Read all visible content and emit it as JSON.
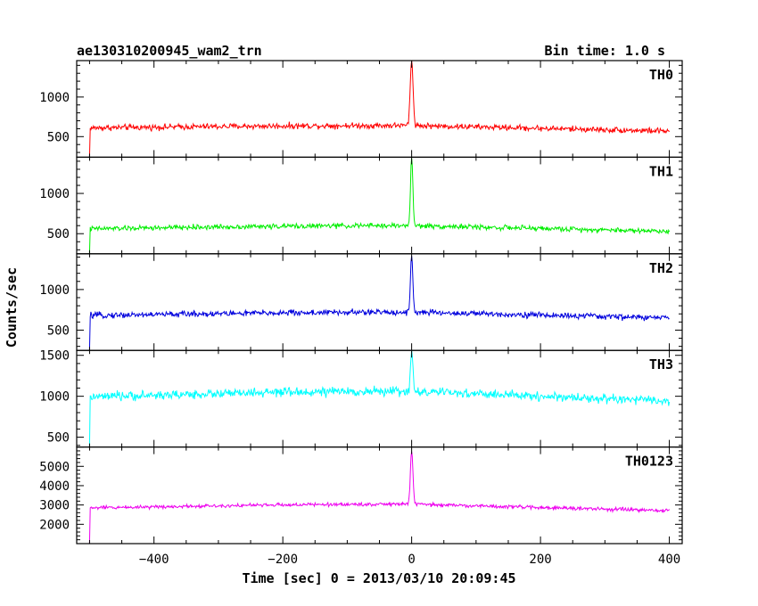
{
  "header": {
    "title": "ae130310200945_wam2_trn",
    "bin_time": "Bin time: 1.0 s"
  },
  "axes": {
    "xlabel": "Time [sec] 0 = 2013/03/10 20:09:45",
    "ylabel": "Counts/sec"
  },
  "chart_data": {
    "type": "line",
    "x": {
      "lim": [
        -520,
        420
      ],
      "ticks": [
        -400,
        -200,
        0,
        200,
        400
      ],
      "tick_labels": [
        "−400",
        "−200",
        "0",
        "200",
        "400"
      ]
    },
    "x_start": -500,
    "x_end": 400,
    "burst_time": 0,
    "panels": [
      {
        "name": "TH0",
        "color": "#ff0000",
        "ylim": [
          240,
          1460
        ],
        "yticks": [
          500,
          1000
        ],
        "baseline_start": 610,
        "baseline_mid": 640,
        "baseline_end": 570,
        "noise": 28,
        "onset_value": 240,
        "peak": 1460,
        "peak_width": 2.2
      },
      {
        "name": "TH1",
        "color": "#00ee00",
        "ylim": [
          250,
          1450
        ],
        "yticks": [
          500,
          1000
        ],
        "baseline_start": 560,
        "baseline_mid": 600,
        "baseline_end": 530,
        "noise": 24,
        "onset_value": 250,
        "peak": 1450,
        "peak_width": 1.8
      },
      {
        "name": "TH2",
        "color": "#0000dd",
        "ylim": [
          250,
          1440
        ],
        "yticks": [
          500,
          1000
        ],
        "baseline_start": 680,
        "baseline_mid": 720,
        "baseline_end": 650,
        "noise": 28,
        "onset_value": 250,
        "peak": 1440,
        "peak_width": 1.8
      },
      {
        "name": "TH3",
        "color": "#00ffff",
        "ylim": [
          380,
          1560
        ],
        "yticks": [
          500,
          1000,
          1500
        ],
        "baseline_start": 990,
        "baseline_mid": 1060,
        "baseline_end": 940,
        "noise": 42,
        "onset_value": 380,
        "peak": 1560,
        "peak_width": 1.8
      },
      {
        "name": "TH0123",
        "color": "#ee00ee",
        "ylim": [
          1000,
          6000
        ],
        "yticks": [
          2000,
          3000,
          4000,
          5000
        ],
        "baseline_start": 2850,
        "baseline_mid": 3040,
        "baseline_end": 2700,
        "noise": 70,
        "onset_value": 1000,
        "peak": 5800,
        "peak_width": 2.0
      }
    ]
  }
}
